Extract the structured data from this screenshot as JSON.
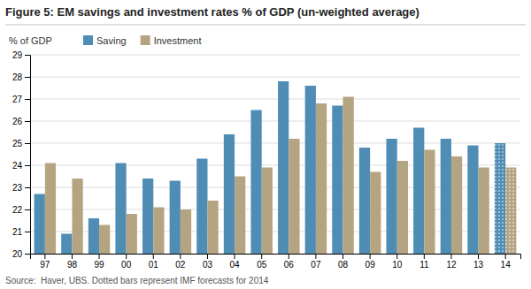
{
  "chart_data": {
    "type": "bar",
    "title": "Figure 5: EM savings and investment rates % of GDP (un-weighted average)",
    "ylabel": "% of GDP",
    "annotations": [
      "Source:  Haver, UBS. Dotted bars represent IMF forecasts for 2014"
    ],
    "categories": [
      "97",
      "98",
      "99",
      "00",
      "01",
      "02",
      "03",
      "04",
      "05",
      "06",
      "07",
      "08",
      "09",
      "10",
      "11",
      "12",
      "13",
      "14"
    ],
    "series": [
      {
        "name": "Saving",
        "color": "#4f8db5",
        "values": [
          22.7,
          20.9,
          21.6,
          24.1,
          23.4,
          23.3,
          24.3,
          25.4,
          26.5,
          27.8,
          27.6,
          26.7,
          24.8,
          25.2,
          25.7,
          25.2,
          24.9,
          25.0
        ]
      },
      {
        "name": "Investment",
        "color": "#b5a482",
        "values": [
          24.1,
          23.4,
          21.3,
          21.8,
          22.1,
          22.0,
          22.4,
          23.5,
          23.9,
          25.2,
          26.8,
          27.1,
          23.7,
          24.2,
          24.7,
          24.4,
          23.9,
          23.9
        ]
      }
    ],
    "ylim": [
      20,
      29
    ],
    "yticks": [
      20,
      21,
      22,
      23,
      24,
      25,
      26,
      27,
      28,
      29
    ],
    "grid": true,
    "legend": "upper left"
  }
}
